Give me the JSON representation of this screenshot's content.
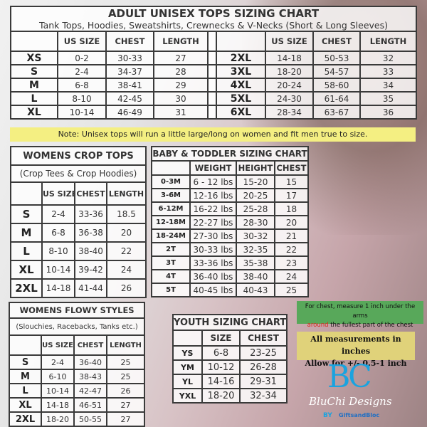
{
  "adult": {
    "title": "ADULT UNISEX TOPS SIZING CHART",
    "subtitle": "Tank Tops, Hoodies, Sweatshirts, Crewnecks & V-Necks (Short & Long Sleeves)",
    "headers": [
      "",
      "US SIZE",
      "CHEST",
      "LENGTH"
    ],
    "left_rows": [
      [
        "XS",
        "0-2",
        "30-33",
        "27"
      ],
      [
        "S",
        "2-4",
        "34-37",
        "28"
      ],
      [
        "M",
        "6-8",
        "38-41",
        "29"
      ],
      [
        "L",
        "8-10",
        "42-45",
        "30"
      ],
      [
        "XL",
        "10-14",
        "46-49",
        "31"
      ]
    ],
    "right_rows": [
      [
        "2XL",
        "14-18",
        "50-53",
        "32"
      ],
      [
        "3XL",
        "18-20",
        "54-57",
        "33"
      ],
      [
        "4XL",
        "20-24",
        "58-60",
        "34"
      ],
      [
        "5XL",
        "24-30",
        "61-64",
        "35"
      ],
      [
        "6XL",
        "28-34",
        "63-67",
        "36"
      ]
    ],
    "note": "Note: Unisex tops will run a little large/long on women and fit men true to size."
  },
  "crop": {
    "title": "WOMENS CROP TOPS",
    "subtitle": "(Crop Tees & Crop Hoodies)",
    "headers": [
      "",
      "US SIZE",
      "CHEST",
      "LENGTH"
    ],
    "rows": [
      [
        "S",
        "2-4",
        "33-36",
        "18.5"
      ],
      [
        "M",
        "6-8",
        "36-38",
        "20"
      ],
      [
        "L",
        "8-10",
        "38-40",
        "22"
      ],
      [
        "XL",
        "10-14",
        "39-42",
        "24"
      ],
      [
        "2XL",
        "14-18",
        "41-44",
        "26"
      ]
    ]
  },
  "baby": {
    "title": "BABY & TODDLER SIZING CHART",
    "headers": [
      "",
      "WEIGHT",
      "HEIGHT",
      "CHEST"
    ],
    "rows": [
      [
        "0-3M",
        "6 - 12 lbs",
        "15-20",
        "15"
      ],
      [
        "3-6M",
        "12-16 lbs",
        "20-25",
        "17"
      ],
      [
        "6-12M",
        "16-22 lbs",
        "25-28",
        "18"
      ],
      [
        "12-18M",
        "22-27 lbs",
        "28-30",
        "20"
      ],
      [
        "18-24M",
        "27-30 lbs",
        "30-32",
        "21"
      ],
      [
        "2T",
        "30-33 lbs",
        "32-35",
        "22"
      ],
      [
        "3T",
        "33-36 lbs",
        "35-38",
        "23"
      ],
      [
        "4T",
        "36-40 lbs",
        "38-40",
        "24"
      ],
      [
        "5T",
        "40-45 lbs",
        "40-43",
        "25"
      ]
    ]
  },
  "flowy": {
    "title": "WOMENS FLOWY STYLES",
    "subtitle": "(Slouchies, Racebacks, Tanks etc.)",
    "headers": [
      "",
      "US SIZE",
      "CHEST",
      "LENGTH"
    ],
    "rows": [
      [
        "S",
        "2-4",
        "36-40",
        "25"
      ],
      [
        "M",
        "6-10",
        "38-43",
        "25"
      ],
      [
        "L",
        "10-14",
        "42-47",
        "26"
      ],
      [
        "XL",
        "14-18",
        "46-51",
        "27"
      ],
      [
        "2XL",
        "18-20",
        "50-55",
        "27"
      ]
    ]
  },
  "youth": {
    "title": "YOUTH SIZING CHART",
    "headers": [
      "",
      "SIZE",
      "CHEST"
    ],
    "rows": [
      [
        "YS",
        "6-8",
        "23-25"
      ],
      [
        "YM",
        "10-12",
        "26-28"
      ],
      [
        "YL",
        "14-16",
        "29-31"
      ],
      [
        "YXL",
        "18-20",
        "32-34"
      ]
    ]
  },
  "measure_tip": {
    "line1": "For chest, measure 1 inch under the arms",
    "highlight": "around",
    "line2_rest": " the fullest part of the chest"
  },
  "units_note": {
    "line1": "All measurements in inches",
    "line2": "Allow for +/- 0.5-1 inch"
  },
  "logo": {
    "monogram": "BC",
    "script": "BluChi Designs",
    "by": "BY",
    "maker": "GiftsandBloc"
  },
  "colors": {
    "note_bg": "#f4ef82",
    "tip_bg": "#58a85a",
    "tip_highlight": "#d9261c",
    "units_bg": "#e0d27a",
    "logo_blue": "#1aa3df"
  }
}
